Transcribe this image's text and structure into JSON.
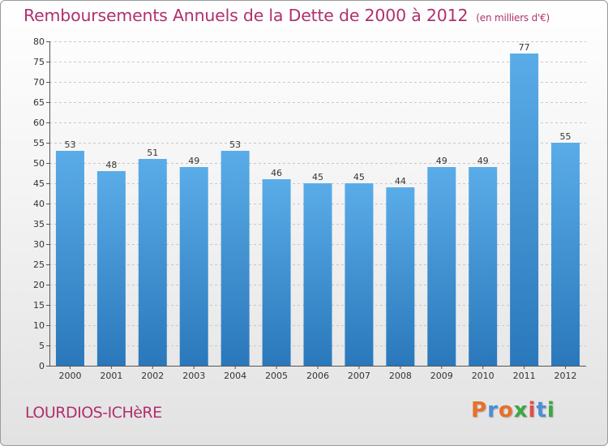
{
  "title": "Remboursements Annuels de la Dette de 2000 à 2012",
  "unit_note": "(en milliers d'€)",
  "commune": "LOURDIOS-ICHèRE",
  "logo": {
    "text": "Proxiti",
    "letter_colors": [
      "#e8702a",
      "#4a8fd8",
      "#e8702a",
      "#3aa843",
      "#e84a4a",
      "#4a8fd8",
      "#3aa843"
    ]
  },
  "colors": {
    "title": "#b0306f",
    "bar_top": "#5aace8",
    "bar_bottom": "#2a78bb"
  },
  "chart_data": {
    "type": "bar",
    "categories": [
      "2000",
      "2001",
      "2002",
      "2003",
      "2004",
      "2005",
      "2006",
      "2007",
      "2008",
      "2009",
      "2010",
      "2011",
      "2012"
    ],
    "values": [
      53,
      48,
      51,
      49,
      53,
      46,
      45,
      45,
      44,
      49,
      49,
      77,
      55
    ],
    "title": "Remboursements Annuels de la Dette de 2000 à 2012",
    "xlabel": "",
    "ylabel": "",
    "ylim": [
      0,
      80
    ],
    "yticks": [
      0,
      5,
      10,
      15,
      20,
      25,
      30,
      35,
      40,
      45,
      50,
      55,
      60,
      65,
      70,
      75,
      80
    ],
    "grid": true,
    "data_labels": true
  }
}
